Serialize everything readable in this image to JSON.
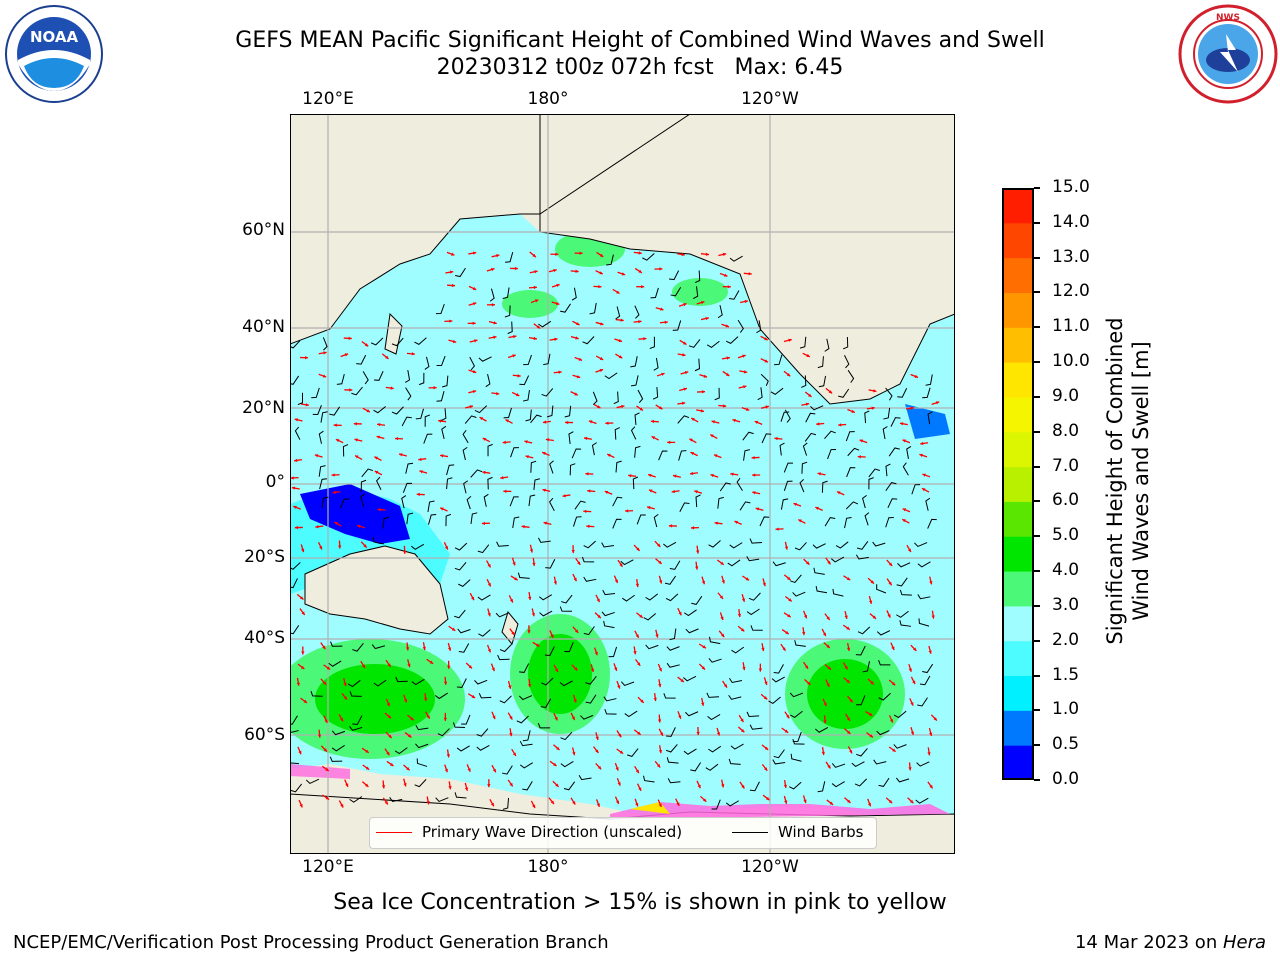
{
  "title": {
    "line1": "GEFS MEAN Pacific Significant Height of Combined Wind Waves and Swell",
    "line2": "20230312 t00z 072h fcst   Max: 6.45"
  },
  "logos": {
    "left": "NOAA",
    "right": "NWS"
  },
  "map": {
    "top_lon_labels": [
      "120°E",
      "180°",
      "120°W"
    ],
    "bottom_lon_labels": [
      "120°E",
      "180°",
      "120°W"
    ],
    "lat_labels": [
      "60°N",
      "40°N",
      "20°N",
      "0°",
      "20°S",
      "40°S",
      "60°S"
    ],
    "ocean_color": "#9ffcff",
    "land_color": "#efedde"
  },
  "legend": {
    "wave_direction": "Primary Wave Direction (unscaled)",
    "wind_barbs": "Wind Barbs",
    "wave_color": "#ff0000",
    "barb_color": "#000000"
  },
  "colorbar": {
    "label": "Significant Height of Combined\nWind Waves and Swell [m]",
    "ticks": [
      "0.0",
      "0.5",
      "1.0",
      "1.5",
      "2.0",
      "3.0",
      "4.0",
      "5.0",
      "6.0",
      "7.0",
      "8.0",
      "9.0",
      "10.0",
      "11.0",
      "12.0",
      "13.0",
      "14.0",
      "15.0"
    ],
    "colors": [
      "#0000ff",
      "#0079ff",
      "#00f0ff",
      "#4cfcff",
      "#9ffcff",
      "#4cf878",
      "#00e600",
      "#5ae600",
      "#b9f000",
      "#dcf500",
      "#f5f500",
      "#ffe600",
      "#ffbe00",
      "#ff9600",
      "#ff6e00",
      "#ff4600",
      "#ff1e00"
    ]
  },
  "subtitle": "Sea Ice Concentration > 15% is shown in pink to yellow",
  "footer": {
    "left": "NCEP/EMC/Verification Post Processing Product Generation Branch",
    "right_date": "14 Mar 2023 on ",
    "right_host": "Hera"
  }
}
